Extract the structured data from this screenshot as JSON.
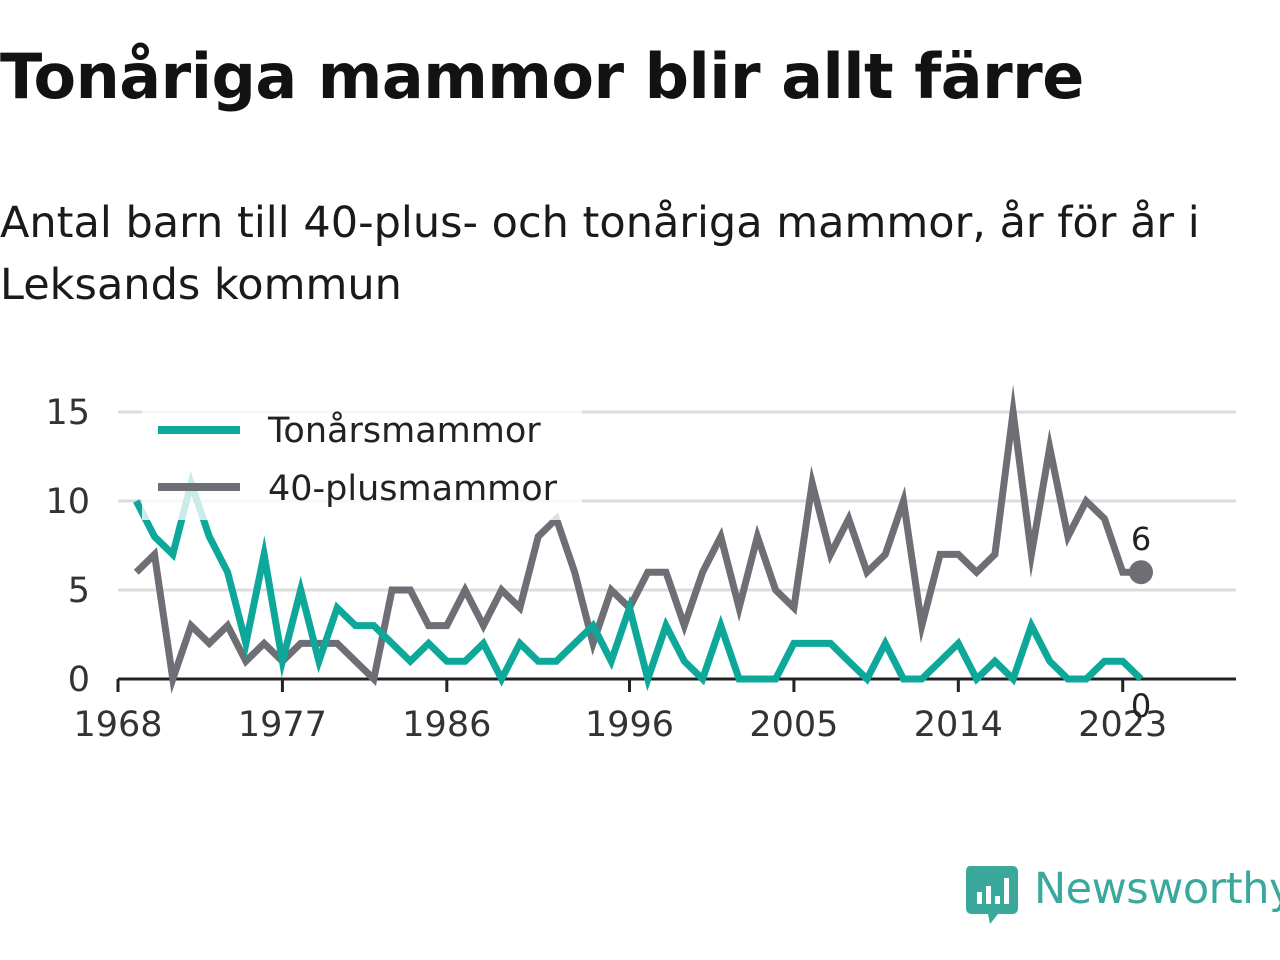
{
  "title": "Tonåriga mammor blir allt färre",
  "subtitle": "Antal barn till 40-plus- och tonåriga mammor, år för år i Leksands kommun",
  "brand": {
    "name": "Newsworthy",
    "color": "#3aa89a",
    "icon": "newsworthy-chart-bubble-icon"
  },
  "chart_data": {
    "type": "line",
    "x": [
      1969,
      1970,
      1971,
      1972,
      1973,
      1974,
      1975,
      1976,
      1977,
      1978,
      1979,
      1980,
      1981,
      1982,
      1983,
      1984,
      1985,
      1986,
      1987,
      1988,
      1989,
      1990,
      1991,
      1992,
      1993,
      1994,
      1995,
      1996,
      1997,
      1998,
      1999,
      2000,
      2001,
      2002,
      2003,
      2004,
      2005,
      2006,
      2007,
      2008,
      2009,
      2010,
      2011,
      2012,
      2013,
      2014,
      2015,
      2016,
      2017,
      2018,
      2019,
      2020,
      2021,
      2022,
      2023,
      2024
    ],
    "series": [
      {
        "name": "Tonårsmammor",
        "color": "#0ea89b",
        "values": [
          10,
          8,
          7,
          11,
          8,
          6,
          2,
          7,
          1,
          5,
          1,
          4,
          3,
          3,
          2,
          1,
          2,
          1,
          1,
          2,
          0,
          2,
          1,
          1,
          2,
          3,
          1,
          4,
          0,
          3,
          1,
          0,
          3,
          0,
          0,
          0,
          2,
          2,
          2,
          1,
          0,
          2,
          0,
          0,
          1,
          2,
          0,
          1,
          0,
          3,
          1,
          0,
          0,
          1,
          1,
          0
        ]
      },
      {
        "name": "40-plusmammor",
        "color": "#6e6e75",
        "values": [
          6,
          7,
          0,
          3,
          2,
          3,
          1,
          2,
          1,
          2,
          2,
          2,
          1,
          0,
          5,
          5,
          3,
          3,
          5,
          3,
          5,
          4,
          8,
          9,
          6,
          2,
          5,
          4,
          6,
          6,
          3,
          6,
          8,
          4,
          8,
          5,
          4,
          11,
          7,
          9,
          6,
          7,
          10,
          3,
          7,
          7,
          6,
          7,
          15,
          7,
          13,
          8,
          10,
          9,
          6,
          6
        ]
      }
    ],
    "x_ticks": [
      "1968",
      "1977",
      "1986",
      "1996",
      "2005",
      "2014",
      "2023"
    ],
    "y_ticks": [
      "0",
      "5",
      "10",
      "15"
    ],
    "ylim": [
      0,
      15
    ],
    "end_labels": [
      {
        "series": "40-plusmammor",
        "text": "6"
      },
      {
        "series": "Tonårsmammor",
        "text": "0"
      }
    ],
    "legend_placement": "top-left",
    "grid": "horizontal"
  }
}
